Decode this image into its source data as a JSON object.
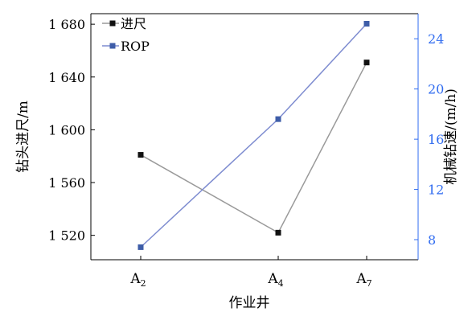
{
  "chart_data": {
    "type": "line",
    "xlabel": "作业井",
    "categories": [
      "A2",
      "A4",
      "A7"
    ],
    "category_labels": [
      {
        "main": "A",
        "sub": "2"
      },
      {
        "main": "A",
        "sub": "4"
      },
      {
        "main": "A",
        "sub": "7"
      }
    ],
    "y_left": {
      "label": "钻头进尺/m",
      "ticks": [
        1520,
        1560,
        1600,
        1640,
        1680
      ],
      "tick_labels": [
        "1 520",
        "1 560",
        "1 600",
        "1 640",
        "1 680"
      ],
      "range": [
        1501.5,
        1688
      ]
    },
    "y_right": {
      "label": "机械钻速/(m/h)",
      "ticks": [
        8,
        12,
        16,
        20,
        24
      ],
      "tick_labels": [
        "8",
        "12",
        "16",
        "20",
        "24"
      ],
      "range": [
        6.4,
        26.0
      ]
    },
    "series": [
      {
        "name": "进尺",
        "axis": "left",
        "values": [
          1581,
          1522,
          1651
        ],
        "color": "#9a9a9a",
        "marker_color": "#111111"
      },
      {
        "name": "ROP",
        "axis": "right",
        "values": [
          7.4,
          17.6,
          25.2
        ],
        "color": "#7e8cd0",
        "marker_color": "#3e5da8"
      }
    ],
    "right_axis_color": "#2f6bf0",
    "legend_position": "top-left",
    "grid": false
  }
}
